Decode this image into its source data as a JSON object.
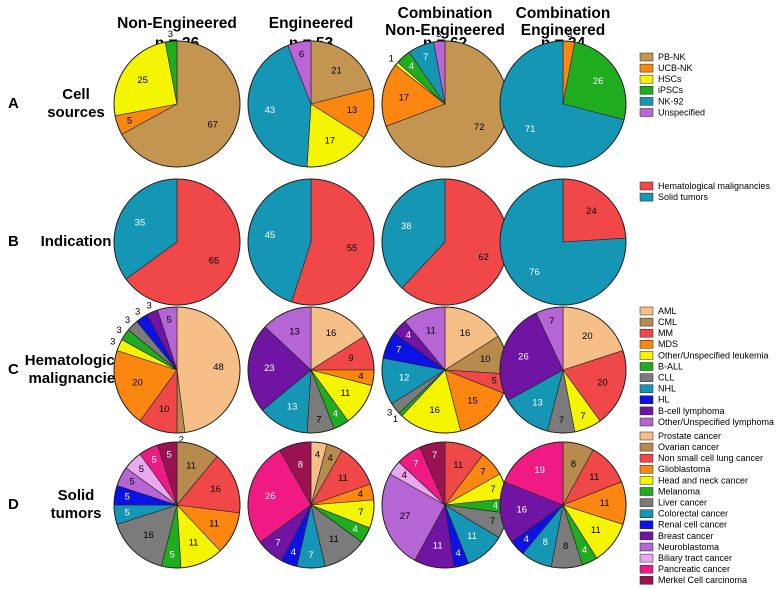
{
  "columns": [
    {
      "name": "Non-Engineered",
      "n": "n = 36"
    },
    {
      "name": "Engineered",
      "n": "n = 53"
    },
    {
      "name": "Combination Non-Engineered",
      "n": "n = 62",
      "name_l1": "Combination",
      "name_l2": "Non-Engineered"
    },
    {
      "name": "Combination Engineered",
      "n": "n = 34",
      "name_l1": "Combination",
      "name_l2": "Engineered"
    }
  ],
  "chart_data": [
    {
      "type": "pie",
      "row_letter": "A",
      "title": "Cell sources",
      "title_lines": [
        "Cell",
        "sources"
      ],
      "categories": [
        "PB-NK",
        "UCB-NK",
        "HSCs",
        "iPSCs",
        "NK-92",
        "Unspecified"
      ],
      "colors": [
        "#c39550",
        "#fb8610",
        "#f5f502",
        "#1fac1f",
        "#1496b4",
        "#bc63d6"
      ],
      "series": [
        {
          "name": "Non-Engineered",
          "values": [
            67,
            5,
            25,
            3,
            0,
            0
          ]
        },
        {
          "name": "Engineered",
          "values": [
            21,
            13,
            17,
            0,
            43,
            6
          ]
        },
        {
          "name": "Combination Non-Engineered",
          "values": [
            72,
            17,
            1,
            4,
            7,
            3
          ]
        },
        {
          "name": "Combination Engineered",
          "values": [
            0,
            3,
            0,
            26,
            71,
            0
          ]
        }
      ]
    },
    {
      "type": "pie",
      "row_letter": "B",
      "title": "Indication",
      "title_lines": [
        "Indication"
      ],
      "categories": [
        "Hematological malignancies",
        "Solid tumors"
      ],
      "colors": [
        "#f04848",
        "#1496b4"
      ],
      "series": [
        {
          "name": "Non-Engineered",
          "values": [
            65,
            35
          ]
        },
        {
          "name": "Engineered",
          "values": [
            55,
            45
          ]
        },
        {
          "name": "Combination Non-Engineered",
          "values": [
            62,
            38
          ]
        },
        {
          "name": "Combination Engineered",
          "values": [
            24,
            76
          ]
        }
      ]
    },
    {
      "type": "pie",
      "row_letter": "C",
      "title": "Hematological malignancies",
      "title_lines": [
        "Hematological",
        "malignancies"
      ],
      "categories": [
        "AML",
        "CML",
        "MM",
        "MDS",
        "Other/Unspecified leukemia",
        "B-ALL",
        "CLL",
        "NHL",
        "HL",
        "B-cell lymphoma",
        "Other/Unspecified lymphoma"
      ],
      "colors": [
        "#f7bf88",
        "#b88a4e",
        "#f04848",
        "#fb8610",
        "#f5f502",
        "#1fac1f",
        "#7b7b7b",
        "#1496b4",
        "#0b12e6",
        "#7014a4",
        "#b666d4"
      ],
      "series": [
        {
          "name": "Non-Engineered",
          "values": [
            48,
            2,
            10,
            20,
            3,
            3,
            3,
            0,
            3,
            3,
            5
          ]
        },
        {
          "name": "Engineered",
          "values": [
            16,
            0,
            9,
            4,
            11,
            4,
            7,
            13,
            0,
            23,
            13
          ]
        },
        {
          "name": "Combination Non-Engineered",
          "values": [
            16,
            10,
            5,
            15,
            16,
            1,
            3,
            12,
            7,
            4,
            11
          ]
        },
        {
          "name": "Combination Engineered",
          "values": [
            20,
            0,
            20,
            0,
            7,
            0,
            7,
            13,
            0,
            26,
            7
          ]
        }
      ]
    },
    {
      "type": "pie",
      "row_letter": "D",
      "title": "Solid tumors",
      "title_lines": [
        "Solid",
        "tumors"
      ],
      "categories": [
        "Prostate cancer",
        "Ovarian cancer",
        "Non small cell lung cancer",
        "Glioblastoma",
        "Head and neck cancer",
        "Melanoma",
        "Liver cancer",
        "Colorectal cancer",
        "Renal cell cancer",
        "Breast cancer",
        "Neuroblastoma",
        "Biliary tract cancer",
        "Pancreatic cancer",
        "Merkel Cell carcinoma"
      ],
      "colors": [
        "#f7bf88",
        "#b88a4e",
        "#f04848",
        "#fb8610",
        "#f5f502",
        "#1fac1f",
        "#7b7b7b",
        "#1496b4",
        "#0b12e6",
        "#7014a4",
        "#b666d4",
        "#eaa8ee",
        "#f01a84",
        "#9b1250"
      ],
      "series": [
        {
          "name": "Non-Engineered",
          "values": [
            0,
            11,
            16,
            11,
            11,
            5,
            16,
            5,
            5,
            0,
            5,
            5,
            5,
            5
          ]
        },
        {
          "name": "Engineered",
          "values": [
            4,
            4,
            11,
            4,
            7,
            4,
            11,
            7,
            4,
            7,
            0,
            0,
            26,
            8
          ]
        },
        {
          "name": "Combination Non-Engineered",
          "values": [
            0,
            0,
            11,
            7,
            7,
            4,
            7,
            11,
            4,
            11,
            27,
            4,
            7,
            7
          ]
        },
        {
          "name": "Combination Engineered",
          "values": [
            0,
            8,
            11,
            11,
            11,
            4,
            8,
            8,
            4,
            16,
            0,
            0,
            19,
            0
          ]
        }
      ]
    }
  ]
}
